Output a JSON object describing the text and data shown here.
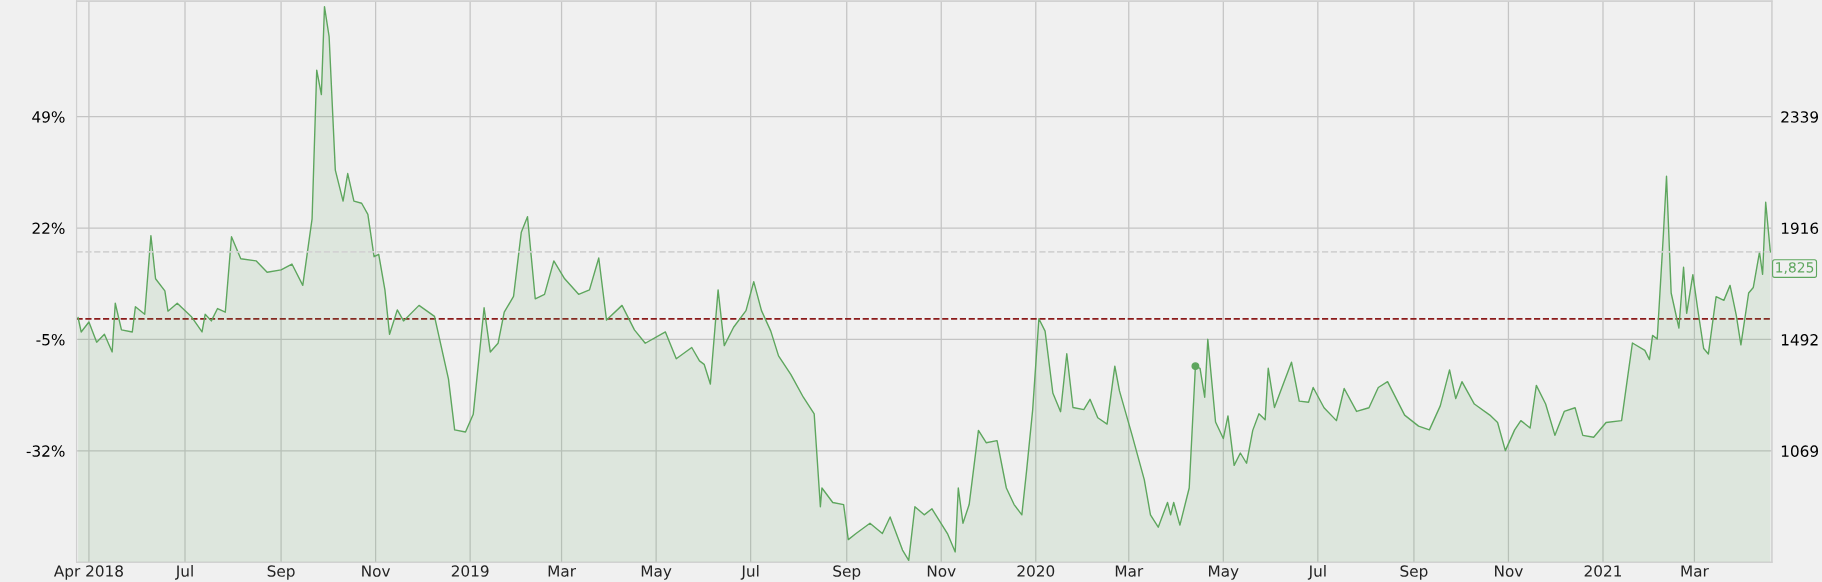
{
  "chart_data": {
    "type": "area",
    "x": [
      "2018-04-23",
      "2018-04-25",
      "2018-04-30",
      "2018-05-05",
      "2018-05-10",
      "2018-05-15",
      "2018-05-17",
      "2018-05-21",
      "2018-05-28",
      "2018-05-30",
      "2018-06-05",
      "2018-06-09",
      "2018-06-12",
      "2018-06-18",
      "2018-06-20",
      "2018-06-26",
      "2018-07-05",
      "2018-07-12",
      "2018-07-14",
      "2018-07-18",
      "2018-07-22",
      "2018-07-27",
      "2018-07-31",
      "2018-08-06",
      "2018-08-16",
      "2018-08-23",
      "2018-09-01",
      "2018-09-08",
      "2018-09-15",
      "2018-09-21",
      "2018-09-24",
      "2018-09-27",
      "2018-09-29",
      "2018-10-02",
      "2018-10-06",
      "2018-10-11",
      "2018-10-14",
      "2018-10-18",
      "2018-10-23",
      "2018-10-27",
      "2018-10-31",
      "2018-11-03",
      "2018-11-07",
      "2018-11-10",
      "2018-11-15",
      "2018-11-19",
      "2018-11-29",
      "2018-12-09",
      "2018-12-18",
      "2018-12-22",
      "2018-12-29",
      "2019-01-03",
      "2019-01-10",
      "2019-01-14",
      "2019-01-19",
      "2019-01-23",
      "2019-01-29",
      "2019-02-03",
      "2019-02-07",
      "2019-02-12",
      "2019-02-18",
      "2019-02-24",
      "2019-03-03",
      "2019-03-12",
      "2019-03-19",
      "2019-03-25",
      "2019-03-30",
      "2019-04-09",
      "2019-04-17",
      "2019-04-24",
      "2019-05-07",
      "2019-05-14",
      "2019-05-24",
      "2019-05-29",
      "2019-06-01",
      "2019-06-05",
      "2019-06-10",
      "2019-06-14",
      "2019-06-20",
      "2019-06-28",
      "2019-07-03",
      "2019-07-08",
      "2019-07-14",
      "2019-07-19",
      "2019-07-27",
      "2019-08-04",
      "2019-08-11",
      "2019-08-15",
      "2019-08-16",
      "2019-08-23",
      "2019-08-30",
      "2019-09-02",
      "2019-09-07",
      "2019-09-16",
      "2019-09-24",
      "2019-09-29",
      "2019-10-07",
      "2019-10-11",
      "2019-10-15",
      "2019-10-21",
      "2019-10-26",
      "2019-11-05",
      "2019-11-10",
      "2019-11-12",
      "2019-11-15",
      "2019-11-19",
      "2019-11-25",
      "2019-11-30",
      "2019-12-07",
      "2019-12-13",
      "2019-12-18",
      "2019-12-23",
      "2019-12-26",
      "2019-12-30",
      "2020-01-03",
      "2020-01-07",
      "2020-01-12",
      "2020-01-17",
      "2020-01-21",
      "2020-01-25",
      "2020-02-01",
      "2020-02-05",
      "2020-02-10",
      "2020-02-16",
      "2020-02-21",
      "2020-02-24",
      "2020-03-03",
      "2020-03-11",
      "2020-03-15",
      "2020-03-20",
      "2020-03-26",
      "2020-03-28",
      "2020-03-30",
      "2020-04-03",
      "2020-04-09",
      "2020-04-13",
      "2020-04-16",
      "2020-04-19",
      "2020-04-21",
      "2020-04-26",
      "2020-05-01",
      "2020-05-04",
      "2020-05-08",
      "2020-05-12",
      "2020-05-16",
      "2020-05-20",
      "2020-05-24",
      "2020-05-28",
      "2020-05-30",
      "2020-06-03",
      "2020-06-09",
      "2020-06-14",
      "2020-06-19",
      "2020-06-25",
      "2020-06-28",
      "2020-07-05",
      "2020-07-13",
      "2020-07-18",
      "2020-07-26",
      "2020-08-03",
      "2020-08-09",
      "2020-08-15",
      "2020-08-26",
      "2020-09-04",
      "2020-09-11",
      "2020-09-18",
      "2020-09-24",
      "2020-09-28",
      "2020-10-02",
      "2020-10-10",
      "2020-10-20",
      "2020-10-25",
      "2020-10-30",
      "2020-11-05",
      "2020-11-09",
      "2020-11-15",
      "2020-11-19",
      "2020-11-25",
      "2020-12-01",
      "2020-12-07",
      "2020-12-14",
      "2020-12-19",
      "2020-12-26",
      "2021-01-03",
      "2021-01-13",
      "2021-01-17",
      "2021-01-20",
      "2021-01-28",
      "2021-01-31",
      "2021-02-02",
      "2021-02-05",
      "2021-02-09",
      "2021-02-11",
      "2021-02-14",
      "2021-02-19",
      "2021-02-22",
      "2021-02-24",
      "2021-02-28",
      "2021-03-03",
      "2021-03-07",
      "2021-03-10",
      "2021-03-15",
      "2021-03-20",
      "2021-03-24",
      "2021-03-28",
      "2021-03-31",
      "2021-04-05",
      "2021-04-08",
      "2021-04-12",
      "2021-04-14",
      "2021-04-16",
      "2021-04-19"
    ],
    "series": [
      {
        "color": "#5ea65e",
        "axis": "y2",
        "values": [
          1576,
          1521,
          1559,
          1482,
          1512,
          1445,
          1630,
          1529,
          1521,
          1617,
          1588,
          1887,
          1723,
          1677,
          1600,
          1630,
          1580,
          1521,
          1588,
          1563,
          1610,
          1596,
          1883,
          1799,
          1791,
          1748,
          1757,
          1779,
          1698,
          1951,
          2516,
          2423,
          2757,
          2643,
          2136,
          2018,
          2123,
          2018,
          2010,
          1968,
          1807,
          1816,
          1681,
          1512,
          1605,
          1563,
          1622,
          1580,
          1343,
          1149,
          1141,
          1208,
          1613,
          1445,
          1478,
          1596,
          1656,
          1900,
          1959,
          1647,
          1664,
          1791,
          1723,
          1664,
          1681,
          1802,
          1566,
          1622,
          1529,
          1478,
          1521,
          1419,
          1462,
          1411,
          1398,
          1323,
          1681,
          1469,
          1539,
          1602,
          1712,
          1602,
          1524,
          1430,
          1359,
          1273,
          1210,
          857,
          928,
          873,
          865,
          732,
          755,
          794,
          755,
          818,
          692,
          653,
          857,
          826,
          849,
          755,
          685,
          928,
          794,
          865,
          1147,
          1100,
          1108,
          928,
          865,
          826,
          990,
          1226,
          1571,
          1524,
          1289,
          1218,
          1438,
          1234,
          1226,
          1265,
          1195,
          1171,
          1391,
          1297,
          1132,
          960,
          826,
          779,
          873,
          826,
          873,
          787,
          928,
          1391,
          1383,
          1273,
          1493,
          1179,
          1116,
          1202,
          1014,
          1061,
          1022,
          1147,
          1210,
          1187,
          1383,
          1234,
          1328,
          1406,
          1258,
          1254,
          1310,
          1233,
          1184,
          1306,
          1219,
          1233,
          1310,
          1332,
          1205,
          1163,
          1149,
          1240,
          1377,
          1268,
          1332,
          1247,
          1205,
          1177,
          1070,
          1149,
          1184,
          1156,
          1318,
          1247,
          1128,
          1219,
          1233,
          1128,
          1121,
          1177,
          1184,
          1353,
          1479,
          1451,
          1416,
          1508,
          1494,
          1894,
          2113,
          1669,
          1536,
          1767,
          1592,
          1739,
          1613,
          1458,
          1437,
          1655,
          1641,
          1698,
          1585,
          1472,
          1669,
          1690,
          1824,
          1740,
          2014,
          1825
        ]
      },
      {
        "type": "scatter",
        "color": "#5ea65e",
        "axis": "y2",
        "marker": "circle",
        "x": [
          "2020-04-13"
        ],
        "values": [
          1391
        ]
      }
    ],
    "xlim": [
      "2018-04-22",
      "2021-04-20"
    ],
    "xticks": [
      {
        "value": "2018-04-30",
        "label": "Apr 2018"
      },
      {
        "value": "2018-07-01",
        "label": "Jul"
      },
      {
        "value": "2018-09-01",
        "label": "Sep"
      },
      {
        "value": "2018-11-01",
        "label": "Nov"
      },
      {
        "value": "2019-01-01",
        "label": "2019"
      },
      {
        "value": "2019-03-01",
        "label": "Mar"
      },
      {
        "value": "2019-05-01",
        "label": "May"
      },
      {
        "value": "2019-07-01",
        "label": "Jul"
      },
      {
        "value": "2019-09-01",
        "label": "Sep"
      },
      {
        "value": "2019-11-01",
        "label": "Nov"
      },
      {
        "value": "2020-01-01",
        "label": "2020"
      },
      {
        "value": "2020-03-01",
        "label": "Mar"
      },
      {
        "value": "2020-05-01",
        "label": "May"
      },
      {
        "value": "2020-07-01",
        "label": "Jul"
      },
      {
        "value": "2020-09-01",
        "label": "Sep"
      },
      {
        "value": "2020-11-01",
        "label": "Nov"
      },
      {
        "value": "2021-01-01",
        "label": "2021"
      },
      {
        "value": "2021-03-01",
        "label": "Mar"
      }
    ],
    "ylim": [
      -59,
      77
    ],
    "yticks": [
      {
        "value": 49,
        "label": "49%"
      },
      {
        "value": 22,
        "label": "22%"
      },
      {
        "value": -5,
        "label": "-5%"
      },
      {
        "value": -32,
        "label": "-32%"
      }
    ],
    "y2lim": [
      646,
      2778
    ],
    "y2ticks": [
      2339,
      1916,
      1492,
      1069
    ],
    "ref_lines": [
      {
        "axis": "y",
        "value": 0,
        "color": "#8b1a1a",
        "line_style": "dashed"
      },
      {
        "axis": "y2",
        "value": 1825,
        "label": "1,825",
        "color": "#d2d2d2",
        "line_style": "dashed"
      }
    ],
    "grid": true,
    "legend": false
  }
}
